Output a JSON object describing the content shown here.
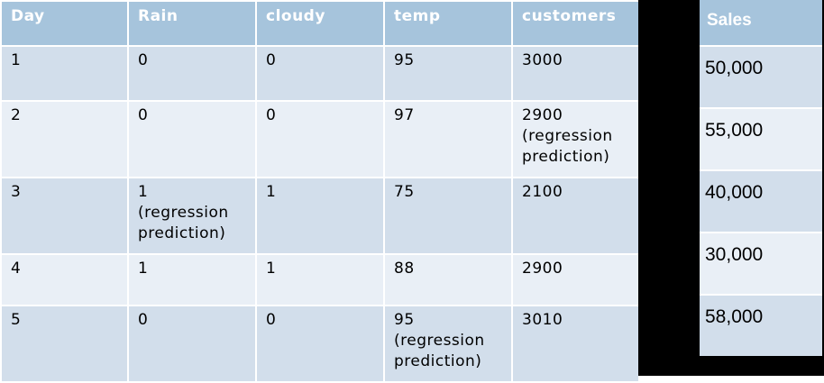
{
  "main_table": {
    "headers": [
      "Day",
      "Rain",
      "cloudy",
      "temp",
      "customers"
    ],
    "rows": [
      {
        "day": "1",
        "rain": "0",
        "cloudy": "0",
        "temp": "95",
        "customers": "3000"
      },
      {
        "day": "2",
        "rain": "0",
        "cloudy": "0",
        "temp": "97",
        "customers": "2900",
        "customers_note": "(regression prediction)"
      },
      {
        "day": "3",
        "rain": "1",
        "rain_note": "(regression prediction)",
        "cloudy": "1",
        "temp": "75",
        "customers": "2100"
      },
      {
        "day": "4",
        "rain": "1",
        "cloudy": "1",
        "temp": "88",
        "customers": "2900"
      },
      {
        "day": "5",
        "rain": "0",
        "cloudy": "0",
        "temp": "95",
        "temp_note": "(regression prediction)",
        "customers": "3010"
      }
    ]
  },
  "sales_table": {
    "header": "Sales",
    "values": [
      "50,000",
      "55,000",
      "40,000",
      "30,000",
      "58,000"
    ]
  },
  "colors": {
    "header_bg": "#a6c4dc",
    "row_dark": "#d2deeb",
    "row_light": "#e9eff6",
    "highlight": "#e01b1b"
  }
}
